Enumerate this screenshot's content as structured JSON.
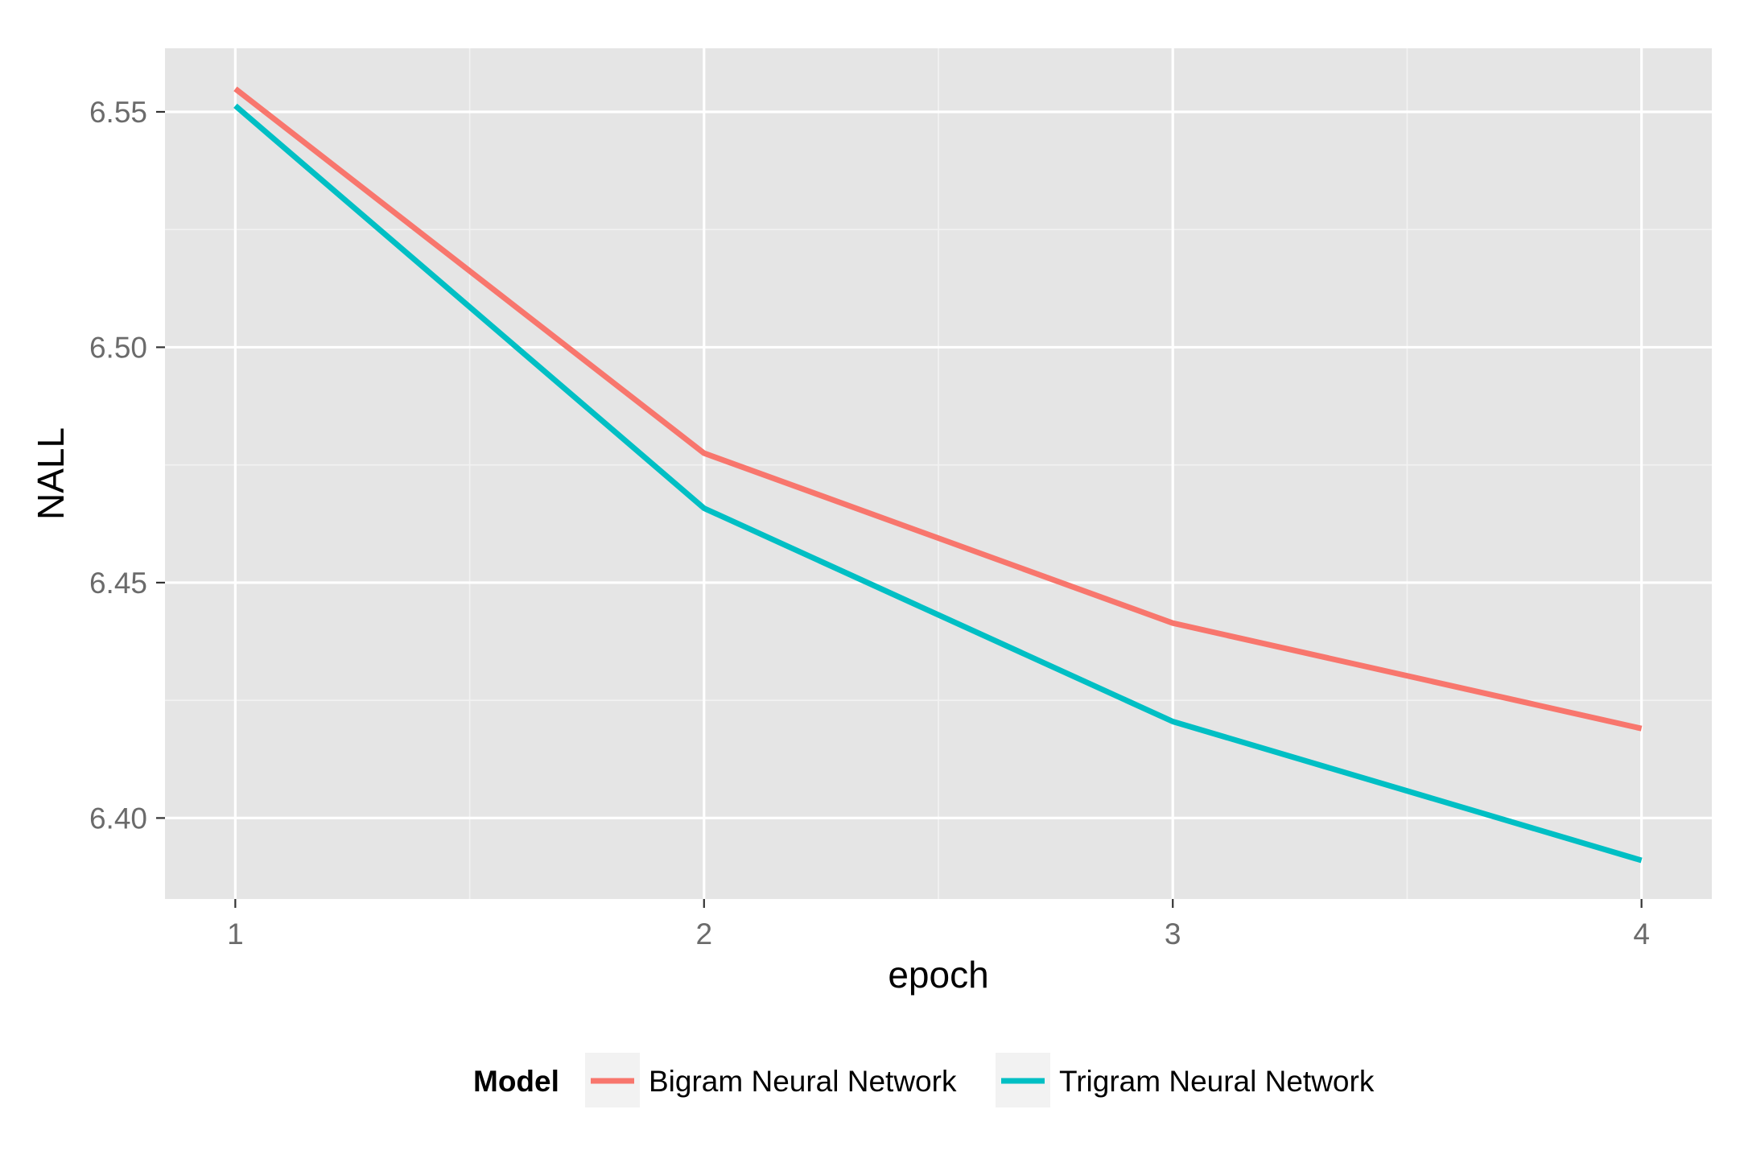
{
  "chart_data": {
    "type": "line",
    "title": "",
    "xlabel": "epoch",
    "ylabel": "NALL",
    "x": [
      1,
      2,
      3,
      4
    ],
    "xlim": [
      0.85,
      4.15
    ],
    "ylim": [
      6.3828,
      6.5635
    ],
    "xticks": [
      1,
      2,
      3,
      4
    ],
    "yticks": [
      6.4,
      6.45,
      6.5,
      6.55
    ],
    "xtick_labels": [
      "1",
      "2",
      "3",
      "4"
    ],
    "ytick_labels": [
      "6.40",
      "6.45",
      "6.50",
      "6.55"
    ],
    "grid": true,
    "legend": {
      "title": "Model",
      "position": "bottom"
    },
    "series": [
      {
        "name": "Bigram Neural Network",
        "color": "#F8766D",
        "values": [
          6.5549,
          6.4775,
          6.4414,
          6.419
        ]
      },
      {
        "name": "Trigram Neural Network",
        "color": "#00BFC4",
        "values": [
          6.5513,
          6.4658,
          6.4205,
          6.391
        ]
      }
    ],
    "panel_background": "#E5E5E5",
    "grid_color": "#FFFFFF"
  }
}
